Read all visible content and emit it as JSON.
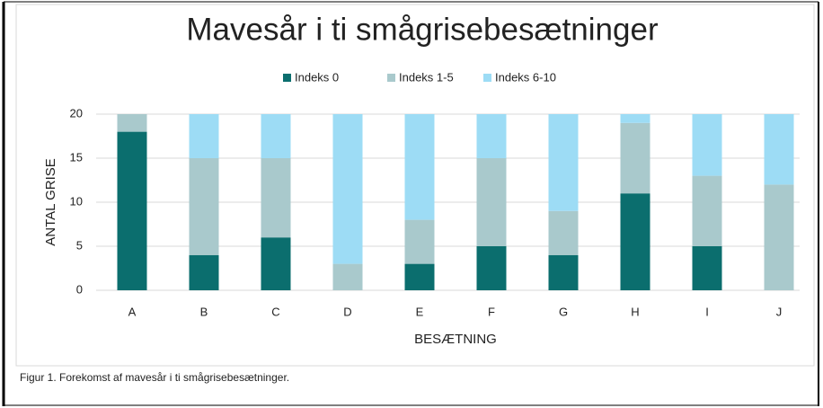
{
  "chart_data": {
    "type": "stacked_bar",
    "title": "Mavesår i ti smågrisebesætninger",
    "x_label": "BESÆTNING",
    "y_label": "ANTAL GRISE",
    "caption": "Figur 1. Forekomst af mavesår i ti smågrisebesætninger.",
    "categories": [
      "A",
      "B",
      "C",
      "D",
      "E",
      "F",
      "G",
      "H",
      "I",
      "J"
    ],
    "series": [
      {
        "name": "Indeks 0",
        "color": "#0b6e6e",
        "values": [
          18,
          4,
          6,
          0,
          3,
          5,
          4,
          11,
          5,
          0
        ]
      },
      {
        "name": "Indeks 1-5",
        "color": "#a9c9cc",
        "values": [
          2,
          11,
          9,
          3,
          5,
          10,
          5,
          8,
          8,
          12
        ]
      },
      {
        "name": "Indeks 6-10",
        "color": "#9ddcf5",
        "values": [
          0,
          5,
          5,
          17,
          12,
          5,
          11,
          1,
          7,
          8
        ]
      }
    ],
    "ylim": [
      0,
      20
    ],
    "yticks": [
      0,
      5,
      10,
      15,
      20
    ],
    "grid": true,
    "legend": "top"
  }
}
